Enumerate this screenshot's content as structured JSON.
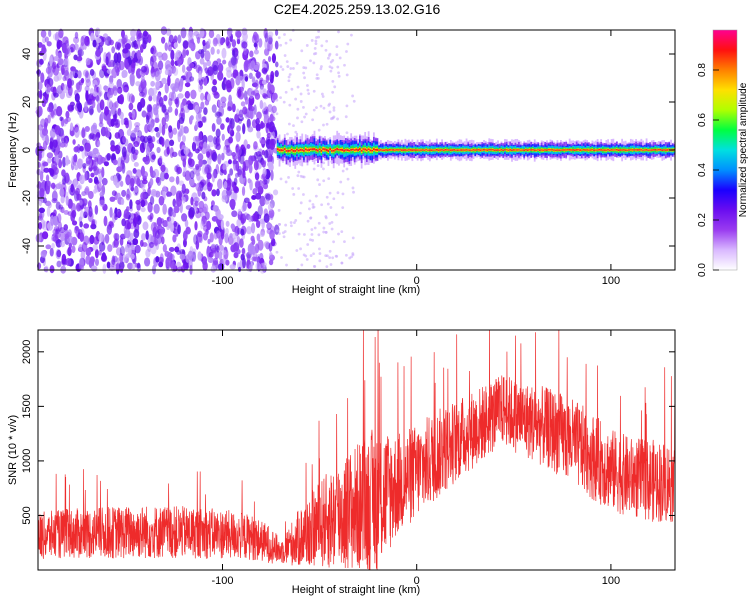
{
  "title": "C2E4.2025.259.13.02.G16",
  "chart_data": [
    {
      "type": "heatmap",
      "xlabel": "Height of straight line (km)",
      "ylabel": "Frequency (Hz)",
      "xlim": [
        -195,
        133
      ],
      "ylim": [
        -50,
        50
      ],
      "xticks": [
        -100,
        0,
        100
      ],
      "yticks": [
        -40,
        -20,
        0,
        20,
        40
      ],
      "colorbar": {
        "label": "Normalized spectral amplitude",
        "range": [
          0,
          0.96
        ],
        "ticks": [
          0.0,
          0.2,
          0.4,
          0.6,
          0.8
        ],
        "colors": [
          "#ffffff",
          "#d9b8ff",
          "#9a3cf0",
          "#6a0df0",
          "#1a00ff",
          "#0090ff",
          "#00e0e0",
          "#00ff40",
          "#b0ff00",
          "#ffe000",
          "#ff8000",
          "#ff1010",
          "#ff0090"
        ]
      },
      "features": {
        "noise_region_x": [
          -195,
          -72
        ],
        "band_region_x": [
          -72,
          133
        ],
        "band_center_hz": 0
      }
    },
    {
      "type": "line",
      "xlabel": "Height of straight line (km)",
      "ylabel": "SNR (10 * v/v)",
      "xlim": [
        -195,
        133
      ],
      "ylim": [
        0,
        2200
      ],
      "xticks": [
        -100,
        0,
        100
      ],
      "yticks": [
        500,
        1000,
        1500,
        2000
      ],
      "color": "#ee2b2b",
      "envelope": {
        "x": [
          -195,
          -180,
          -160,
          -140,
          -120,
          -100,
          -85,
          -75,
          -70,
          -60,
          -50,
          -40,
          -30,
          -20,
          -10,
          0,
          10,
          20,
          30,
          40,
          45,
          50,
          60,
          70,
          80,
          90,
          100,
          110,
          120,
          133
        ],
        "mean": [
          310,
          330,
          340,
          350,
          345,
          330,
          300,
          230,
          170,
          300,
          420,
          500,
          580,
          650,
          780,
          900,
          1050,
          1180,
          1300,
          1420,
          1480,
          1420,
          1350,
          1280,
          1180,
          1050,
          920,
          850,
          820,
          800
        ],
        "spread": [
          220,
          230,
          240,
          250,
          240,
          230,
          210,
          170,
          110,
          280,
          400,
          520,
          600,
          700,
          480,
          440,
          420,
          380,
          360,
          340,
          330,
          340,
          360,
          380,
          400,
          400,
          380,
          370,
          380,
          380
        ]
      }
    }
  ]
}
